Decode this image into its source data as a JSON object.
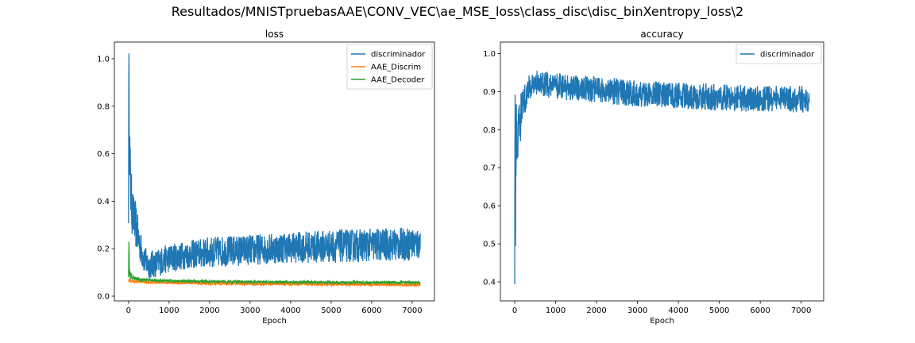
{
  "figure": {
    "suptitle": "Resultados/MNISTpruebasAAE\\CONV_VEC\\ae_MSE_loss\\class_disc\\disc_binXentropy_loss\\2"
  },
  "chart_data": [
    {
      "type": "line",
      "title": "loss",
      "xlabel": "Epoch",
      "ylabel": "",
      "xlim": [
        -350,
        7550
      ],
      "ylim": [
        -0.02,
        1.07
      ],
      "xticks": [
        0,
        1000,
        2000,
        3000,
        4000,
        5000,
        6000,
        7000
      ],
      "yticks": [
        0.0,
        0.2,
        0.4,
        0.6,
        0.8,
        1.0
      ],
      "grid": false,
      "legend": "top-right",
      "series": [
        {
          "name": "discriminador",
          "color": "#1f77b4",
          "x": [
            0,
            10,
            20,
            30,
            50,
            80,
            120,
            160,
            200,
            300,
            400,
            500,
            700,
            1000,
            1500,
            2000,
            3000,
            4000,
            5000,
            6000,
            7000,
            7200
          ],
          "mean": [
            0.55,
            0.98,
            0.75,
            0.6,
            0.45,
            0.38,
            0.33,
            0.31,
            0.28,
            0.2,
            0.15,
            0.13,
            0.14,
            0.16,
            0.175,
            0.185,
            0.195,
            0.205,
            0.21,
            0.215,
            0.22,
            0.22
          ],
          "spread": [
            0.3,
            0.05,
            0.2,
            0.15,
            0.12,
            0.12,
            0.1,
            0.1,
            0.09,
            0.07,
            0.06,
            0.06,
            0.06,
            0.06,
            0.06,
            0.065,
            0.065,
            0.065,
            0.07,
            0.07,
            0.07,
            0.07
          ]
        },
        {
          "name": "AAE_Discrim",
          "color": "#ff7f0e",
          "x": [
            0,
            20,
            50,
            100,
            300,
            700,
            1500,
            3000,
            5000,
            7200
          ],
          "mean": [
            0.07,
            0.065,
            0.063,
            0.062,
            0.06,
            0.058,
            0.055,
            0.052,
            0.05,
            0.048
          ],
          "spread": [
            0.006,
            0.005,
            0.005,
            0.005,
            0.005,
            0.005,
            0.005,
            0.005,
            0.005,
            0.005
          ]
        },
        {
          "name": "AAE_Decoder",
          "color": "#2ca02c",
          "x": [
            0,
            10,
            20,
            40,
            80,
            150,
            300,
            700,
            1500,
            3000,
            5000,
            7200
          ],
          "mean": [
            0.12,
            0.23,
            0.12,
            0.09,
            0.08,
            0.075,
            0.07,
            0.066,
            0.063,
            0.06,
            0.058,
            0.057
          ],
          "spread": [
            0.05,
            0.01,
            0.04,
            0.02,
            0.01,
            0.008,
            0.006,
            0.005,
            0.005,
            0.005,
            0.005,
            0.005
          ]
        }
      ]
    },
    {
      "type": "line",
      "title": "accuracy",
      "xlabel": "Epoch",
      "ylabel": "",
      "xlim": [
        -350,
        7550
      ],
      "ylim": [
        0.35,
        1.03
      ],
      "xticks": [
        0,
        1000,
        2000,
        3000,
        4000,
        5000,
        6000,
        7000
      ],
      "yticks": [
        0.4,
        0.5,
        0.6,
        0.7,
        0.8,
        0.9,
        1.0
      ],
      "grid": false,
      "legend": "top-right",
      "series": [
        {
          "name": "discriminador",
          "color": "#1f77b4",
          "x": [
            0,
            10,
            20,
            40,
            60,
            100,
            150,
            200,
            300,
            400,
            500,
            700,
            1000,
            1500,
            2000,
            3000,
            4000,
            5000,
            6000,
            7000,
            7200
          ],
          "mean": [
            0.45,
            0.9,
            0.55,
            0.8,
            0.78,
            0.8,
            0.84,
            0.87,
            0.9,
            0.92,
            0.925,
            0.92,
            0.915,
            0.91,
            0.905,
            0.895,
            0.89,
            0.885,
            0.88,
            0.88,
            0.88
          ],
          "spread": [
            0.07,
            0.1,
            0.15,
            0.1,
            0.08,
            0.08,
            0.06,
            0.05,
            0.04,
            0.035,
            0.035,
            0.035,
            0.035,
            0.035,
            0.035,
            0.035,
            0.035,
            0.035,
            0.035,
            0.035,
            0.035
          ]
        }
      ]
    }
  ]
}
